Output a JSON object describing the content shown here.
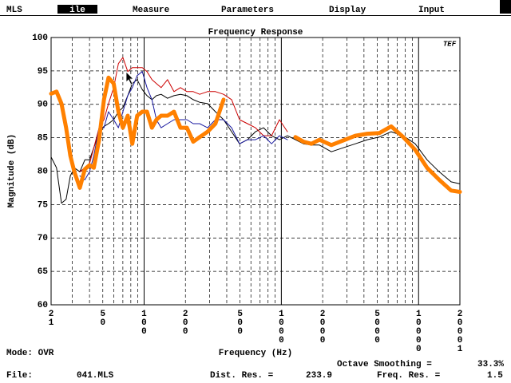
{
  "menu": [
    "MLS",
    "ile",
    "Measure",
    "Parameters",
    "Display",
    "Input"
  ],
  "status": {
    "mode": "Mode: OVR",
    "octave_smoothing_label": "Octave Smoothing =",
    "octave_smoothing": "33.3%",
    "file_label": "File:",
    "file": "041.MLS",
    "dist_res_label": "Dist. Res. =",
    "dist_res": 233.9,
    "freq_res_label": "Freq. Res. =",
    "freq_res": 1.5
  },
  "chart_data": {
    "type": "line",
    "title": "Frequency Response",
    "logo": "TEF",
    "x_label": "Frequency (Hz)",
    "y_label": "Magnitude (dB)",
    "x_scale": "log",
    "xlim": [
      21,
      20001
    ],
    "ylim": [
      60,
      100
    ],
    "xticks": [
      21,
      50,
      100,
      200,
      500,
      1000,
      2000,
      5000,
      10000,
      20001
    ],
    "xminor": [
      30,
      40,
      60,
      70,
      80,
      90,
      300,
      400,
      600,
      700,
      800,
      900,
      3000,
      4000,
      6000,
      7000,
      8000,
      9000
    ],
    "yticks": [
      60,
      65,
      70,
      75,
      80,
      85,
      90,
      95,
      100
    ],
    "grid": true,
    "x": [
      21,
      23,
      25,
      27,
      29,
      31,
      34,
      37,
      40,
      43,
      47,
      51,
      55,
      60,
      65,
      70,
      76,
      82,
      89,
      97,
      105,
      114,
      123,
      133,
      148,
      165,
      184,
      205,
      228,
      254,
      290,
      331,
      379,
      434,
      496,
      567,
      647,
      742,
      848,
      969,
      1107,
      1266,
      1449,
      1656,
      1894,
      2314,
      2826,
      3461,
      4229,
      5166,
      6313,
      7728,
      9446,
      11540,
      14133,
      17262,
      20001
    ],
    "series": [
      {
        "color": "#000000",
        "line_width": 1,
        "values": [
          82.1,
          80.5,
          75.2,
          75.8,
          79.3,
          80.5,
          79.9,
          81.7,
          81.7,
          83.5,
          85.9,
          86.7,
          87.1,
          87.7,
          88.9,
          89.5,
          91.3,
          93.1,
          93.7,
          92.2,
          91.3,
          90.7,
          91.3,
          91.5,
          90.9,
          91.3,
          91.5,
          91.3,
          90.7,
          90.3,
          90.1,
          88.9,
          87.7,
          85.9,
          84.1,
          84.7,
          85.9,
          86.5,
          85.3,
          84.7,
          85.3,
          84.7,
          84.1,
          83.9,
          83.9,
          82.9,
          83.5,
          84.1,
          84.7,
          85.1,
          85.9,
          85.3,
          84.1,
          81.7,
          79.9,
          78.4,
          78.1
        ]
      },
      {
        "color": "#cc0000",
        "line_width": 1,
        "values": [
          null,
          null,
          null,
          null,
          null,
          null,
          79.9,
          80.5,
          81.1,
          83.5,
          86.5,
          87.7,
          90.1,
          92.5,
          96.1,
          97.0,
          94.9,
          95.5,
          95.5,
          95.5,
          94.9,
          93.7,
          93.1,
          92.5,
          93.7,
          91.9,
          92.5,
          91.9,
          91.9,
          91.5,
          91.9,
          91.9,
          91.5,
          90.7,
          87.7,
          87.1,
          86.5,
          85.3,
          85.3,
          87.7,
          85.9,
          null,
          null,
          null,
          null,
          null,
          null,
          null,
          null,
          null,
          null,
          null,
          null,
          null,
          null,
          null,
          null
        ]
      },
      {
        "color": "#1a1aa0",
        "line_width": 1,
        "values": [
          null,
          null,
          null,
          null,
          null,
          null,
          79.3,
          78.7,
          79.9,
          82.3,
          86.5,
          86.5,
          88.9,
          87.7,
          86.5,
          88.9,
          91.3,
          92.5,
          94.3,
          94.9,
          92.5,
          90.7,
          87.7,
          86.5,
          87.1,
          87.7,
          87.7,
          87.7,
          87.1,
          87.1,
          86.5,
          87.7,
          87.7,
          86.5,
          84.1,
          84.7,
          84.7,
          85.3,
          84.1,
          85.3,
          84.7,
          null,
          null,
          null,
          null,
          null,
          null,
          null,
          null,
          null,
          null,
          null,
          null,
          null,
          null,
          null,
          null
        ]
      },
      {
        "color": "#ff8000",
        "line_width": 5,
        "values": [
          91.6,
          91.9,
          90.1,
          86.5,
          82.3,
          79.9,
          77.5,
          80.3,
          80.9,
          80.5,
          84.7,
          90.7,
          94.0,
          93.1,
          88.9,
          86.5,
          88.3,
          84.1,
          88.3,
          88.9,
          88.9,
          86.5,
          87.7,
          88.3,
          88.3,
          88.9,
          86.5,
          86.5,
          84.4,
          85.1,
          85.9,
          87.1,
          90.7,
          null,
          null,
          null,
          null,
          null,
          null,
          null,
          null,
          85.1,
          84.4,
          84.1,
          84.7,
          83.9,
          84.6,
          85.3,
          85.6,
          85.7,
          86.7,
          85.1,
          83.2,
          80.5,
          78.7,
          77.1,
          76.9
        ]
      }
    ]
  }
}
